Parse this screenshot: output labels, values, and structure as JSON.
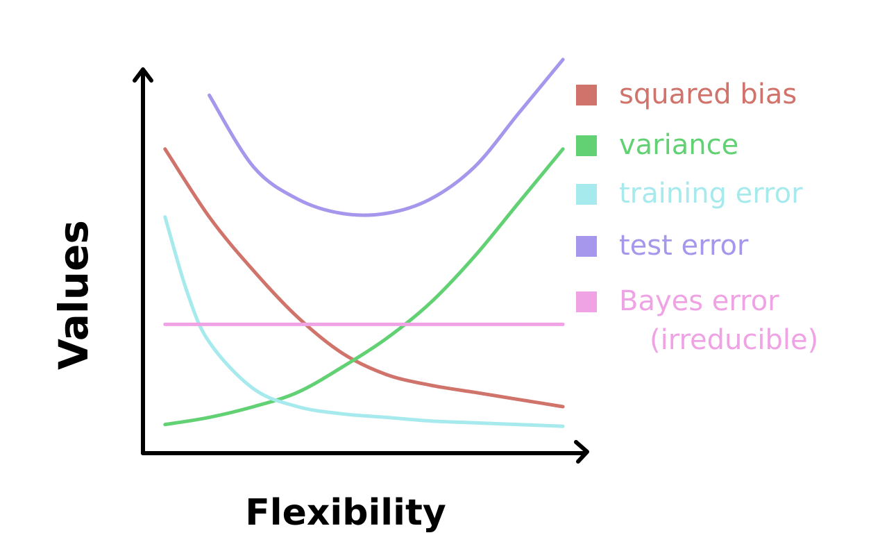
{
  "chart_data": {
    "type": "line",
    "xlabel": "Flexibility",
    "ylabel": "Values",
    "grid": false,
    "legend_position": "right",
    "series": [
      {
        "name": "squared bias",
        "color": "#d0736b",
        "x": [
          0.05,
          0.15,
          0.25,
          0.35,
          0.45,
          0.55,
          0.65,
          0.75,
          0.85,
          0.95
        ],
        "y": [
          0.85,
          0.66,
          0.51,
          0.38,
          0.28,
          0.22,
          0.19,
          0.17,
          0.15,
          0.13
        ]
      },
      {
        "name": "variance",
        "color": "#62d173",
        "x": [
          0.05,
          0.15,
          0.25,
          0.35,
          0.45,
          0.55,
          0.65,
          0.75,
          0.85,
          0.95
        ],
        "y": [
          0.08,
          0.1,
          0.13,
          0.17,
          0.24,
          0.32,
          0.42,
          0.55,
          0.7,
          0.85
        ]
      },
      {
        "name": "training error",
        "color": "#a6eaee",
        "x": [
          0.05,
          0.1,
          0.15,
          0.25,
          0.35,
          0.45,
          0.55,
          0.65,
          0.75,
          0.85,
          0.95
        ],
        "y": [
          0.66,
          0.45,
          0.31,
          0.18,
          0.13,
          0.11,
          0.1,
          0.09,
          0.085,
          0.08,
          0.075
        ]
      },
      {
        "name": "test error",
        "color": "#a696ec",
        "x": [
          0.15,
          0.25,
          0.35,
          0.45,
          0.55,
          0.65,
          0.75,
          0.85,
          0.95
        ],
        "y": [
          1.0,
          0.8,
          0.71,
          0.67,
          0.67,
          0.71,
          0.8,
          0.95,
          1.1
        ]
      },
      {
        "name": "Bayes error (irreducible)",
        "color": "#efa2e4",
        "x": [
          0.05,
          0.95
        ],
        "y": [
          0.36,
          0.36
        ]
      }
    ],
    "legend": [
      {
        "lines": [
          "squared bias"
        ],
        "color": "#d0736b"
      },
      {
        "lines": [
          "variance"
        ],
        "color": "#62d173"
      },
      {
        "lines": [
          "training error"
        ],
        "color": "#a6eaee"
      },
      {
        "lines": [
          "test error"
        ],
        "color": "#a696ec"
      },
      {
        "lines": [
          "Bayes error",
          "(irreducible)"
        ],
        "color": "#efa2e4"
      }
    ],
    "xlim": [
      0,
      1
    ],
    "ylim": [
      0,
      1.15
    ]
  }
}
